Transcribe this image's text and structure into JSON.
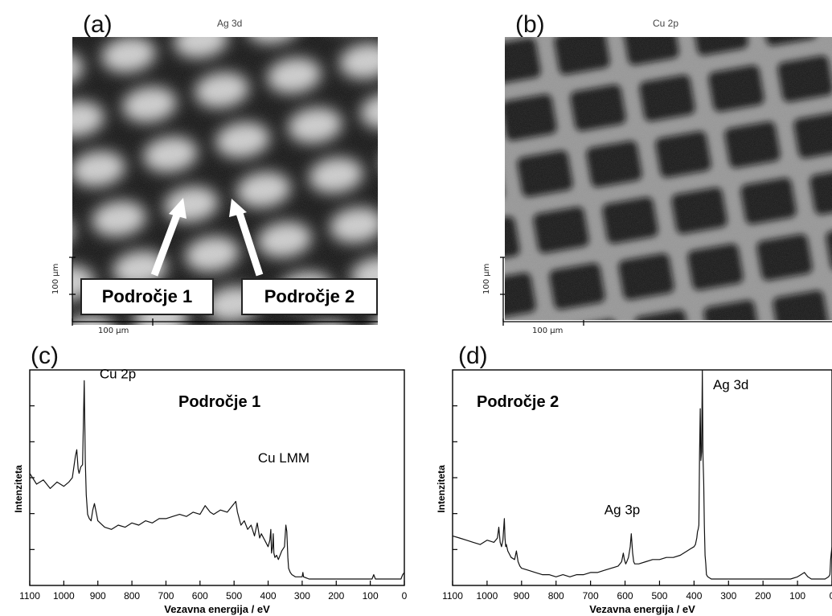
{
  "panels": {
    "a": {
      "letter": "(a)",
      "title": "Ag 3d",
      "scale_x": "100 µm",
      "scale_y": "100 µm"
    },
    "b": {
      "letter": "(b)",
      "title": "Cu 2p",
      "scale_x": "100 µm",
      "scale_y": "100 µm"
    },
    "c": {
      "letter": "(c)"
    },
    "d": {
      "letter": "(d)"
    }
  },
  "callouts": {
    "region1": "Področje 1",
    "region2": "Področje 2"
  },
  "colors": {
    "line": "#111111",
    "axis": "#000000",
    "arrow": "#ffffff"
  },
  "chart_data": [
    {
      "type": "line",
      "panel": "(c)",
      "title": "Področje 1",
      "xlabel": "Vezavna energija / eV",
      "ylabel": "Intenziteta",
      "xlim": [
        1100,
        0
      ],
      "ylim": [
        0,
        100
      ],
      "x_reversed": true,
      "xticks": [
        1100,
        1000,
        900,
        800,
        700,
        600,
        500,
        400,
        300,
        200,
        100,
        0
      ],
      "annotations": [
        {
          "text": "Cu 2p",
          "x": 895,
          "y": 96
        },
        {
          "text": "Cu LMM",
          "x": 430,
          "y": 57
        }
      ],
      "series": [
        {
          "x": [
            1100,
            1080,
            1060,
            1040,
            1020,
            1000,
            985,
            975,
            966,
            962,
            958,
            955,
            950,
            945,
            940,
            937,
            934,
            930,
            925,
            920,
            915,
            910,
            905,
            900,
            880,
            860,
            840,
            820,
            800,
            780,
            760,
            740,
            720,
            700,
            680,
            660,
            640,
            620,
            600,
            585,
            570,
            560,
            540,
            520,
            500,
            495,
            490,
            480,
            470,
            460,
            450,
            440,
            432,
            425,
            420,
            410,
            400,
            395,
            392,
            390,
            387,
            385,
            383,
            380,
            375,
            370,
            360,
            352,
            348,
            345,
            342,
            340,
            335,
            330,
            320,
            310,
            300,
            298,
            296,
            280,
            260,
            240,
            220,
            200,
            180,
            160,
            140,
            120,
            100,
            95,
            90,
            85,
            80,
            60,
            40,
            20,
            10,
            5,
            0
          ],
          "y": [
            52,
            47,
            49,
            45,
            48,
            46,
            48,
            50,
            60,
            63,
            54,
            52,
            55,
            56,
            95,
            58,
            42,
            33,
            31,
            30,
            35,
            38,
            34,
            30,
            27,
            26,
            28,
            27,
            29,
            28,
            30,
            29,
            31,
            31,
            32,
            33,
            32,
            34,
            33,
            37,
            34,
            33,
            35,
            34,
            38,
            39,
            34,
            28,
            30,
            26,
            28,
            23,
            29,
            22,
            24,
            21,
            18,
            21,
            26,
            15,
            18,
            24,
            15,
            13,
            14,
            12,
            16,
            18,
            28,
            25,
            13,
            8,
            6,
            5,
            4,
            4,
            4,
            6,
            4,
            3,
            3,
            3,
            3,
            3,
            3,
            3,
            3,
            3,
            3,
            3,
            5,
            3,
            3,
            3,
            3,
            3,
            3,
            5,
            6
          ]
        }
      ]
    },
    {
      "type": "line",
      "panel": "(d)",
      "title": "Področje 2",
      "xlabel": "Vezavna energija  / eV",
      "ylabel": "Intenziteta",
      "xlim": [
        1100,
        0
      ],
      "ylim": [
        0,
        100
      ],
      "x_reversed": true,
      "xticks": [
        1100,
        1000,
        900,
        800,
        700,
        600,
        500,
        400,
        300,
        200,
        100,
        0
      ],
      "annotations": [
        {
          "text": "Ag 3d",
          "x": 345,
          "y": 91
        },
        {
          "text": "Ag 3p",
          "x": 660,
          "y": 33
        }
      ],
      "series": [
        {
          "x": [
            1100,
            1080,
            1060,
            1040,
            1020,
            1000,
            980,
            970,
            966,
            962,
            958,
            954,
            950,
            948,
            946,
            944,
            940,
            930,
            920,
            915,
            910,
            905,
            900,
            880,
            860,
            840,
            820,
            800,
            780,
            760,
            740,
            720,
            700,
            680,
            660,
            640,
            620,
            610,
            605,
            602,
            598,
            595,
            590,
            585,
            582,
            578,
            575,
            572,
            560,
            540,
            520,
            500,
            480,
            460,
            440,
            420,
            410,
            400,
            396,
            392,
            390,
            388,
            386,
            384,
            382,
            380,
            378,
            376,
            374,
            372,
            370,
            368,
            366,
            364,
            360,
            350,
            340,
            320,
            300,
            280,
            260,
            240,
            220,
            200,
            180,
            160,
            140,
            120,
            100,
            90,
            80,
            75,
            70,
            60,
            40,
            20,
            10,
            6,
            4,
            2,
            0
          ],
          "y": [
            23,
            22,
            21,
            20,
            19,
            21,
            20,
            22,
            27,
            20,
            18,
            21,
            31,
            22,
            18,
            19,
            16,
            13,
            12,
            16,
            11,
            9,
            8,
            7,
            6,
            5,
            5,
            4,
            5,
            4,
            5,
            5,
            6,
            6,
            7,
            8,
            9,
            11,
            15,
            12,
            10,
            11,
            13,
            18,
            24,
            15,
            11,
            10,
            10,
            11,
            12,
            12,
            13,
            13,
            14,
            16,
            17,
            18,
            19,
            22,
            25,
            26,
            28,
            60,
            82,
            58,
            62,
            100,
            60,
            48,
            28,
            14,
            10,
            5,
            4,
            3,
            3,
            3,
            3,
            3,
            3,
            3,
            3,
            3,
            3,
            3,
            3,
            3,
            4,
            5,
            6,
            5,
            4,
            3,
            3,
            3,
            4,
            5,
            12,
            15,
            18
          ]
        }
      ]
    }
  ]
}
